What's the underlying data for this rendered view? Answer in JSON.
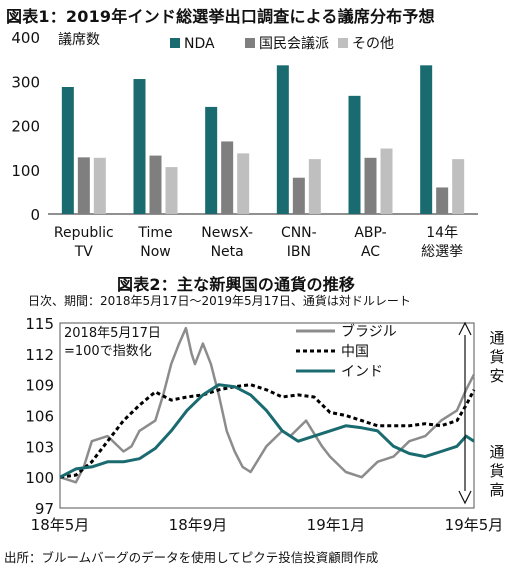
{
  "figure1": {
    "title": "図表1：2019年インド総選挙出口調査による議席分布予想",
    "ylabel": "議席数",
    "colors": {
      "NDA": "#1a6b70",
      "国民会議派": "#7f7f7f",
      "その他": "#bfbfbf"
    }
  },
  "figure2": {
    "title": "図表2：主な新興国の通貨の推移",
    "subtitle": "日次、期間：2018年5月17日～2019年5月17日、通貨は対ドルレート",
    "note_lines": [
      "2018年5月17日",
      "=100で指数化"
    ],
    "right_top": [
      "通",
      "貨",
      "安"
    ],
    "right_bottom": [
      "通",
      "貨",
      "高"
    ],
    "colors": {
      "ブラジル": "#8c8c8c",
      "中国": "#000000",
      "インド": "#1a6b70"
    }
  },
  "source": "出所：ブルームバーグのデータを使用してピクテ投信投資顧問作成",
  "chart_data": [
    {
      "type": "bar",
      "title": "図表1：2019年インド総選挙出口調査による議席分布予想",
      "ylabel": "議席数",
      "ylim": [
        0,
        400
      ],
      "yticks": [
        0,
        100,
        200,
        300,
        400
      ],
      "categories": [
        [
          "Republic",
          "TV"
        ],
        [
          "Time",
          "Now"
        ],
        [
          "NewsX-",
          "Neta"
        ],
        [
          "CNN-",
          "IBN"
        ],
        [
          "ABP-",
          "AC"
        ],
        [
          "14年",
          "総選挙"
        ]
      ],
      "series": [
        {
          "name": "NDA",
          "values": [
            287,
            305,
            242,
            336,
            267,
            336
          ]
        },
        {
          "name": "国民会議派",
          "values": [
            128,
            132,
            164,
            82,
            127,
            60
          ]
        },
        {
          "name": "その他",
          "values": [
            127,
            106,
            137,
            124,
            148,
            124
          ]
        }
      ],
      "legend": "top",
      "grid": false
    },
    {
      "type": "line",
      "title": "図表2：主な新興国の通貨の推移",
      "xlabels": [
        "18年5月",
        "18年9月",
        "19年1月",
        "19年5月"
      ],
      "x_period": [
        "2018-05-17",
        "2019-05-17"
      ],
      "ylim": [
        97,
        115
      ],
      "yticks": [
        97,
        100,
        103,
        106,
        109,
        112,
        115
      ],
      "grid": false,
      "legend": "top-right",
      "series": [
        {
          "name": "ブラジル",
          "x": [
            "2018-05-17",
            "2018-05-31",
            "2018-06-07",
            "2018-06-14",
            "2018-06-28",
            "2018-07-12",
            "2018-07-19",
            "2018-07-26",
            "2018-08-09",
            "2018-08-16",
            "2018-08-23",
            "2018-08-30",
            "2018-09-05",
            "2018-09-10",
            "2018-09-13",
            "2018-09-20",
            "2018-09-27",
            "2018-10-04",
            "2018-10-11",
            "2018-10-18",
            "2018-10-25",
            "2018-11-01",
            "2018-11-15",
            "2018-11-29",
            "2018-12-06",
            "2018-12-20",
            "2019-01-03",
            "2019-01-10",
            "2019-01-24",
            "2019-02-07",
            "2019-02-21",
            "2019-03-07",
            "2019-03-21",
            "2019-04-04",
            "2019-04-18",
            "2019-05-02",
            "2019-05-10",
            "2019-05-17"
          ],
          "values": [
            100.0,
            99.5,
            101.0,
            103.5,
            104.0,
            102.5,
            103.0,
            104.5,
            105.5,
            108.0,
            111.0,
            113.0,
            114.5,
            112.0,
            111.0,
            113.0,
            111.0,
            108.0,
            104.5,
            102.5,
            101.0,
            100.5,
            103.0,
            104.5,
            104.0,
            105.5,
            103.0,
            102.0,
            100.5,
            100.0,
            101.5,
            102.0,
            103.5,
            104.0,
            105.5,
            106.5,
            108.5,
            110.0
          ]
        },
        {
          "name": "中国",
          "x": [
            "2018-05-17",
            "2018-05-31",
            "2018-06-14",
            "2018-06-28",
            "2018-07-12",
            "2018-07-26",
            "2018-08-09",
            "2018-08-23",
            "2018-09-06",
            "2018-09-20",
            "2018-10-04",
            "2018-10-18",
            "2018-11-01",
            "2018-11-15",
            "2018-11-29",
            "2018-12-13",
            "2018-12-27",
            "2019-01-10",
            "2019-01-24",
            "2019-02-07",
            "2019-02-21",
            "2019-03-07",
            "2019-03-21",
            "2019-04-04",
            "2019-04-18",
            "2019-05-02",
            "2019-05-10",
            "2019-05-17"
          ],
          "values": [
            100.0,
            100.2,
            101.5,
            103.5,
            105.5,
            107.0,
            108.3,
            107.5,
            107.8,
            108.0,
            108.5,
            108.8,
            109.0,
            108.5,
            107.8,
            108.0,
            107.8,
            106.3,
            106.0,
            105.5,
            105.0,
            105.0,
            105.0,
            105.2,
            105.0,
            105.5,
            107.0,
            108.5
          ]
        },
        {
          "name": "インド",
          "x": [
            "2018-05-17",
            "2018-05-31",
            "2018-06-14",
            "2018-06-28",
            "2018-07-12",
            "2018-07-26",
            "2018-08-09",
            "2018-08-23",
            "2018-09-06",
            "2018-09-20",
            "2018-10-04",
            "2018-10-18",
            "2018-11-01",
            "2018-11-15",
            "2018-11-29",
            "2018-12-13",
            "2018-12-27",
            "2019-01-10",
            "2019-01-24",
            "2019-02-07",
            "2019-02-21",
            "2019-03-07",
            "2019-03-21",
            "2019-04-04",
            "2019-04-18",
            "2019-05-02",
            "2019-05-10",
            "2019-05-17"
          ],
          "values": [
            100.0,
            100.8,
            101.0,
            101.5,
            101.5,
            101.8,
            102.8,
            104.5,
            106.5,
            108.0,
            109.0,
            108.8,
            108.0,
            106.5,
            104.5,
            103.5,
            104.0,
            104.5,
            105.0,
            104.8,
            104.5,
            103.0,
            102.3,
            102.0,
            102.5,
            103.0,
            104.0,
            103.5
          ]
        }
      ]
    }
  ]
}
